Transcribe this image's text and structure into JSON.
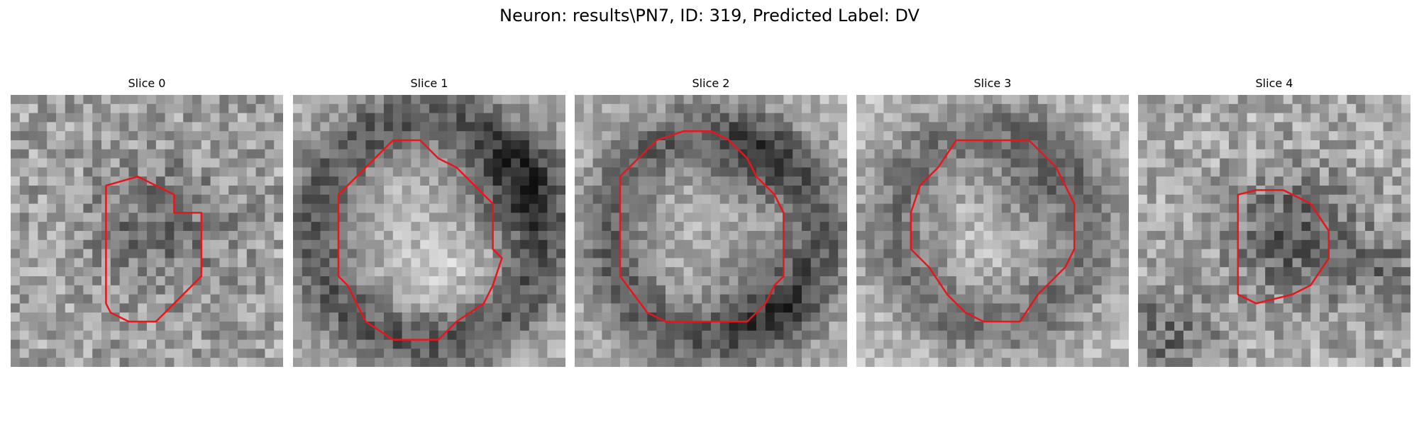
{
  "figure": {
    "title": "Neuron: results\\PN7, ID: 319, Predicted Label: DV",
    "outline_color": "#e8161b"
  },
  "panels": [
    {
      "title": "Slice 0"
    },
    {
      "title": "Slice 1"
    },
    {
      "title": "Slice 2"
    },
    {
      "title": "Slice 3"
    },
    {
      "title": "Slice 4"
    }
  ]
}
